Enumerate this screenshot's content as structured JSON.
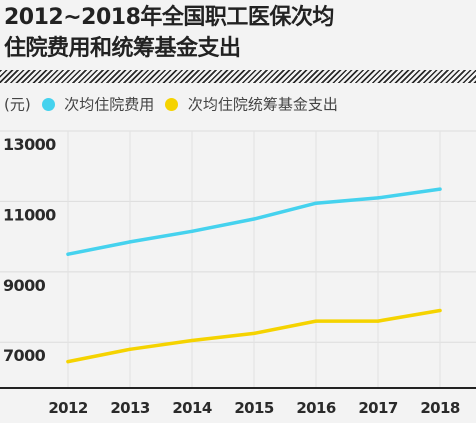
{
  "title_line1": "2012~2018年全国职工医保次均",
  "title_line2": "住院费用和统筹基金支出",
  "chart_data": {
    "type": "line",
    "title": "2012~2018年全国职工医保次均住院费用和统筹基金支出",
    "unit": "(元)",
    "x": [
      "2012",
      "2013",
      "2014",
      "2015",
      "2016",
      "2017",
      "2018"
    ],
    "yticks": [
      "13000",
      "11000",
      "9000",
      "7000"
    ],
    "ylim": [
      5700,
      13000
    ],
    "grid": true,
    "legend_position": "top",
    "series": [
      {
        "name": "次均住院费用",
        "color": "#45d2ee",
        "values": [
          9500,
          9850,
          10150,
          10500,
          10950,
          11100,
          11350
        ]
      },
      {
        "name": "次均住院统筹基金支出",
        "color": "#f5d300",
        "values": [
          6450,
          6800,
          7050,
          7250,
          7600,
          7600,
          7900
        ]
      }
    ]
  }
}
